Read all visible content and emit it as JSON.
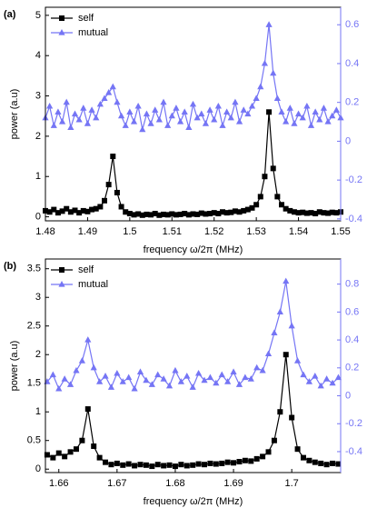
{
  "chart_data": [
    {
      "type": "line",
      "panel_label": "(a)",
      "ylabel": "power (a.u)",
      "xlabel": "frequency ω/2π (MHz)",
      "x": [
        1.48,
        1.481,
        1.482,
        1.483,
        1.484,
        1.485,
        1.486,
        1.487,
        1.488,
        1.489,
        1.49,
        1.491,
        1.492,
        1.493,
        1.494,
        1.495,
        1.496,
        1.497,
        1.498,
        1.499,
        1.5,
        1.501,
        1.502,
        1.503,
        1.504,
        1.505,
        1.506,
        1.507,
        1.508,
        1.509,
        1.51,
        1.511,
        1.512,
        1.513,
        1.514,
        1.515,
        1.516,
        1.517,
        1.518,
        1.519,
        1.52,
        1.521,
        1.522,
        1.523,
        1.524,
        1.525,
        1.526,
        1.527,
        1.528,
        1.529,
        1.53,
        1.531,
        1.532,
        1.533,
        1.534,
        1.535,
        1.536,
        1.537,
        1.538,
        1.539,
        1.54,
        1.541,
        1.542,
        1.543,
        1.544,
        1.545,
        1.546,
        1.547,
        1.548,
        1.549,
        1.55
      ],
      "series": [
        {
          "name": "self",
          "color": "#000000",
          "marker": "square",
          "values": [
            0.15,
            0.12,
            0.18,
            0.1,
            0.14,
            0.2,
            0.12,
            0.16,
            0.1,
            0.15,
            0.13,
            0.18,
            0.2,
            0.25,
            0.4,
            0.8,
            1.5,
            0.6,
            0.25,
            0.12,
            0.08,
            0.05,
            0.07,
            0.04,
            0.06,
            0.05,
            0.08,
            0.04,
            0.06,
            0.05,
            0.07,
            0.05,
            0.06,
            0.08,
            0.05,
            0.07,
            0.06,
            0.09,
            0.07,
            0.08,
            0.1,
            0.08,
            0.12,
            0.1,
            0.11,
            0.14,
            0.12,
            0.15,
            0.18,
            0.22,
            0.3,
            0.5,
            1.0,
            2.6,
            1.2,
            0.5,
            0.3,
            0.2,
            0.15,
            0.12,
            0.1,
            0.11,
            0.09,
            0.1,
            0.08,
            0.12,
            0.1,
            0.09,
            0.11,
            0.1,
            0.12
          ]
        },
        {
          "name": "mutual",
          "color": "#7575f5",
          "marker": "triangle",
          "axis": "y2",
          "values": [
            0.12,
            0.18,
            0.08,
            0.15,
            0.1,
            0.2,
            0.07,
            0.14,
            0.11,
            0.17,
            0.09,
            0.16,
            0.12,
            0.19,
            0.22,
            0.25,
            0.28,
            0.2,
            0.13,
            0.08,
            0.15,
            0.1,
            0.18,
            0.06,
            0.14,
            0.09,
            0.16,
            0.11,
            0.2,
            0.08,
            0.13,
            0.17,
            0.1,
            0.15,
            0.07,
            0.19,
            0.12,
            0.14,
            0.09,
            0.16,
            0.11,
            0.18,
            0.08,
            0.15,
            0.12,
            0.2,
            0.1,
            0.16,
            0.14,
            0.18,
            0.22,
            0.28,
            0.4,
            0.6,
            0.35,
            0.22,
            0.15,
            0.1,
            0.17,
            0.09,
            0.14,
            0.12,
            0.18,
            0.08,
            0.15,
            0.11,
            0.17,
            0.1,
            0.13,
            0.16,
            0.12
          ]
        }
      ],
      "xlim": [
        1.48,
        1.55
      ],
      "xticks": [
        1.48,
        1.49,
        1.5,
        1.51,
        1.52,
        1.53,
        1.54,
        1.55
      ],
      "ylim": [
        -0.1,
        5.2
      ],
      "yticks": [
        0,
        1,
        2,
        3,
        4,
        5
      ],
      "y2lim": [
        -0.41,
        0.69
      ],
      "y2ticks": [
        -0.4,
        -0.2,
        0,
        0.2,
        0.4,
        0.6
      ],
      "legend": "upper-left"
    },
    {
      "type": "line",
      "panel_label": "(b)",
      "ylabel": "power (a.u)",
      "xlabel": "frequency ω/2π (MHz)",
      "x": [
        1.658,
        1.659,
        1.66,
        1.661,
        1.662,
        1.663,
        1.664,
        1.665,
        1.666,
        1.667,
        1.668,
        1.669,
        1.67,
        1.671,
        1.672,
        1.673,
        1.674,
        1.675,
        1.676,
        1.677,
        1.678,
        1.679,
        1.68,
        1.681,
        1.682,
        1.683,
        1.684,
        1.685,
        1.686,
        1.687,
        1.688,
        1.689,
        1.69,
        1.691,
        1.692,
        1.693,
        1.694,
        1.695,
        1.696,
        1.697,
        1.698,
        1.699,
        1.7,
        1.701,
        1.702,
        1.703,
        1.704,
        1.705,
        1.706,
        1.707,
        1.708
      ],
      "series": [
        {
          "name": "self",
          "color": "#000000",
          "marker": "square",
          "values": [
            0.25,
            0.2,
            0.28,
            0.22,
            0.3,
            0.35,
            0.5,
            1.05,
            0.4,
            0.2,
            0.12,
            0.08,
            0.1,
            0.07,
            0.09,
            0.06,
            0.08,
            0.07,
            0.05,
            0.08,
            0.06,
            0.07,
            0.05,
            0.08,
            0.06,
            0.07,
            0.09,
            0.08,
            0.1,
            0.09,
            0.1,
            0.12,
            0.11,
            0.13,
            0.15,
            0.14,
            0.18,
            0.22,
            0.3,
            0.5,
            1.0,
            2.0,
            0.9,
            0.35,
            0.2,
            0.15,
            0.12,
            0.1,
            0.08,
            0.1,
            0.09
          ]
        },
        {
          "name": "mutual",
          "color": "#7575f5",
          "marker": "triangle",
          "axis": "y2",
          "values": [
            0.1,
            0.15,
            0.05,
            0.12,
            0.08,
            0.18,
            0.25,
            0.4,
            0.2,
            0.1,
            0.14,
            0.06,
            0.16,
            0.1,
            0.13,
            0.05,
            0.17,
            0.11,
            0.08,
            0.15,
            0.12,
            0.07,
            0.18,
            0.1,
            0.14,
            0.06,
            0.16,
            0.11,
            0.13,
            0.09,
            0.15,
            0.1,
            0.17,
            0.08,
            0.13,
            0.12,
            0.2,
            0.18,
            0.3,
            0.45,
            0.6,
            0.82,
            0.5,
            0.25,
            0.15,
            0.1,
            0.14,
            0.07,
            0.12,
            0.09,
            0.13
          ]
        }
      ],
      "xlim": [
        1.6577,
        1.7084
      ],
      "xticks": [
        1.66,
        1.67,
        1.68,
        1.69,
        1.7
      ],
      "ylim": [
        -0.06,
        3.67
      ],
      "yticks": [
        0,
        0.5,
        1,
        1.5,
        2,
        2.5,
        3,
        3.5
      ],
      "y2lim": [
        -0.55,
        0.98
      ],
      "y2ticks": [
        -0.4,
        -0.2,
        0,
        0.2,
        0.4,
        0.6,
        0.8
      ],
      "legend": "upper-left"
    }
  ]
}
